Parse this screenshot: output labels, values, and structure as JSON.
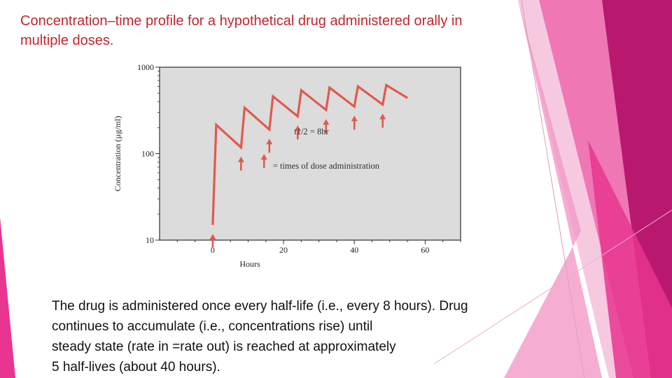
{
  "slide": {
    "title_lines": [
      "Concentration–time profile for a hypothetical drug administered orally in",
      "multiple doses."
    ],
    "body_lines": [
      "The drug is administered once every half-life (i.e., every 8 hours). Drug",
      "continues to accumulate (i.e., concentrations rise) until",
      "steady state (rate in =rate out) is reached at approximately",
      "5 half-lives (about 40 hours)."
    ]
  },
  "colors": {
    "title": "#c0262d",
    "curve": "#e05a4e",
    "plot_bg": "#dcdcdc",
    "accent_pink": "#e8358f",
    "accent_magenta": "#b8196f"
  },
  "chart_data": {
    "type": "line",
    "title": "",
    "xlabel": "Hours",
    "ylabel": "Concentration (µg/ml)",
    "xlim": [
      -15,
      70
    ],
    "ylim": [
      10,
      1000
    ],
    "yscale": "log",
    "xticks": [
      0,
      20,
      40,
      60
    ],
    "xtick_labels": [
      "0",
      "20",
      "40",
      "60"
    ],
    "yticks": [
      10,
      100,
      1000
    ],
    "ytick_labels": [
      "10",
      "100",
      "1000"
    ],
    "series": [
      {
        "name": "concentration",
        "x": [
          0,
          1,
          8,
          9,
          16,
          17,
          24,
          25,
          32,
          33,
          40,
          41,
          48,
          49,
          55
        ],
        "y": [
          15,
          215,
          118,
          340,
          190,
          460,
          270,
          540,
          320,
          580,
          350,
          600,
          370,
          620,
          440
        ]
      }
    ],
    "dose_times": [
      0,
      8,
      16,
      24,
      32,
      40,
      48
    ],
    "annotations": [
      {
        "text": "t1/2 = 8hr"
      },
      {
        "text": "= times of dose administration"
      }
    ]
  }
}
